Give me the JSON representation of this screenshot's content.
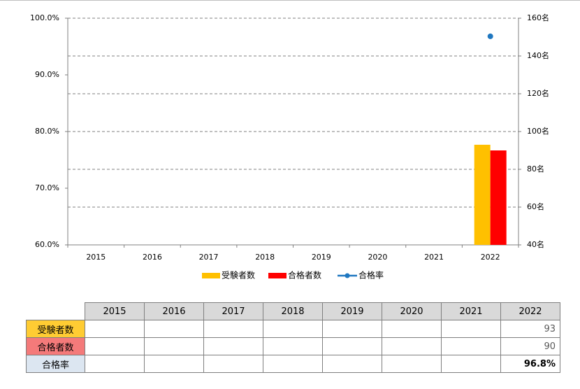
{
  "chart_data": {
    "type": "combo",
    "categories": [
      "2015",
      "2016",
      "2017",
      "2018",
      "2019",
      "2020",
      "2021",
      "2022"
    ],
    "series": [
      {
        "name": "受験者数",
        "type": "bar",
        "axis": "y2",
        "color": "#ffc000",
        "table_color": "#ffcc33",
        "values": [
          null,
          null,
          null,
          null,
          null,
          null,
          null,
          93
        ]
      },
      {
        "name": "合格者数",
        "type": "bar",
        "axis": "y2",
        "color": "#ff0000",
        "table_color": "#f47a7a",
        "values": [
          null,
          null,
          null,
          null,
          null,
          null,
          null,
          90
        ]
      },
      {
        "name": "合格率",
        "type": "line",
        "axis": "y",
        "color": "#1f77c0",
        "table_color": "#dce6f1",
        "values": [
          null,
          null,
          null,
          null,
          null,
          null,
          null,
          96.8
        ],
        "value_labels": [
          null,
          null,
          null,
          null,
          null,
          null,
          null,
          "96.8%"
        ]
      }
    ],
    "ylim": [
      60,
      100
    ],
    "yticks": [
      {
        "value": 60,
        "label": "60.0%"
      },
      {
        "value": 70,
        "label": "70.0%"
      },
      {
        "value": 80,
        "label": "80.0%"
      },
      {
        "value": 90,
        "label": "90.0%"
      },
      {
        "value": 100,
        "label": "100.0%"
      }
    ],
    "y2lim": [
      40,
      160
    ],
    "y2ticks": [
      {
        "value": 40,
        "label": "40名"
      },
      {
        "value": 60,
        "label": "60名"
      },
      {
        "value": 80,
        "label": "80名"
      },
      {
        "value": 100,
        "label": "100名"
      },
      {
        "value": 120,
        "label": "120名"
      },
      {
        "value": 140,
        "label": "140名"
      },
      {
        "value": 160,
        "label": "160名"
      }
    ],
    "grid_axis": "y2"
  }
}
